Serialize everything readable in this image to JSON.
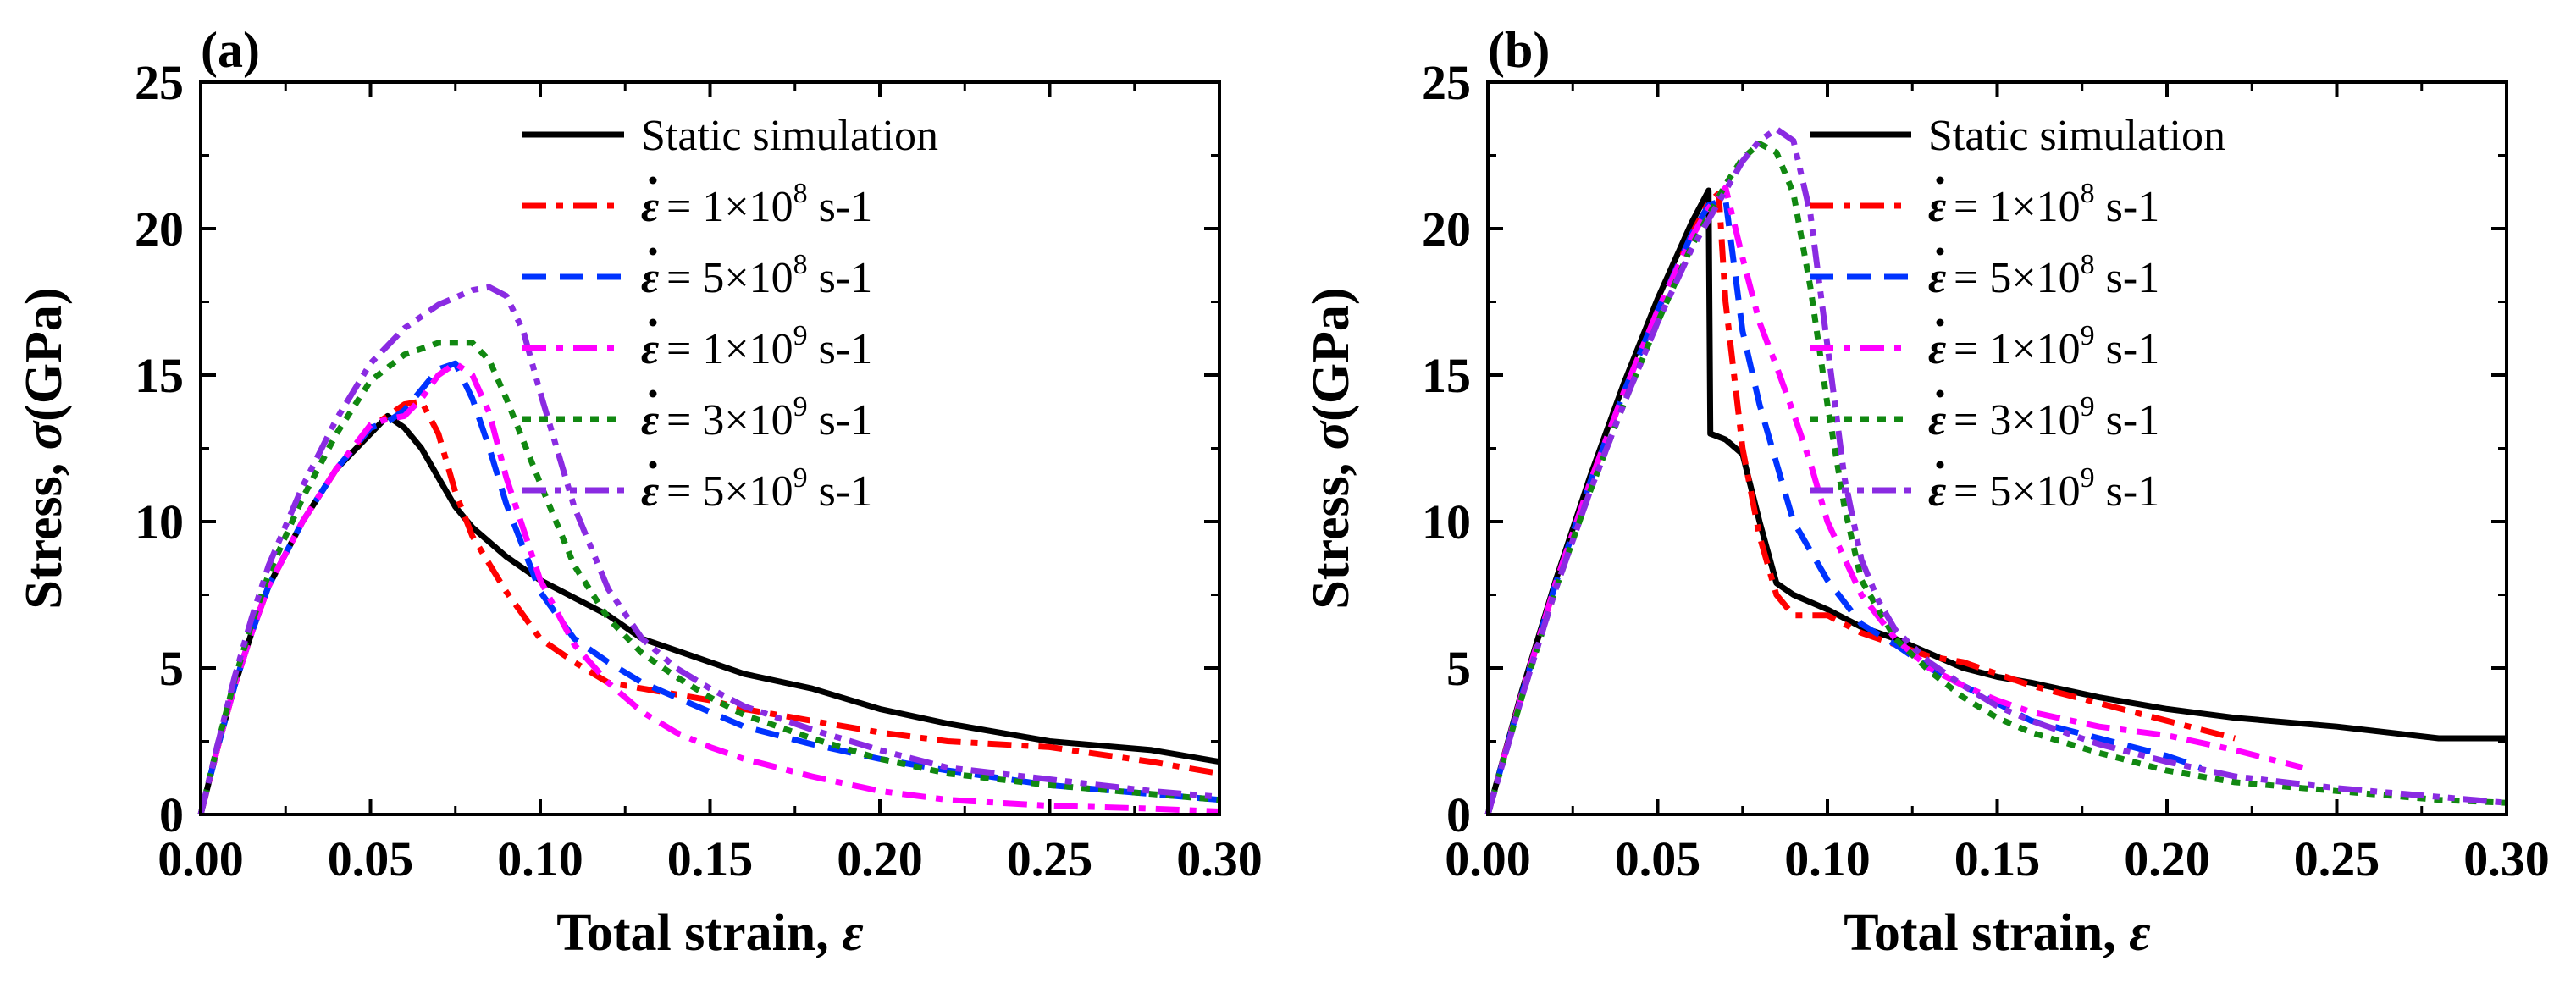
{
  "chart_data": [
    {
      "type": "line",
      "panel_label": "(a)",
      "xlabel_text": "Total strain, ",
      "xlabel_symbol": "ε",
      "ylabel_text": "Stress, ",
      "ylabel_symbol": "σ",
      "ylabel_unit": "(GPa)",
      "xlim": [
        0,
        0.3
      ],
      "ylim": [
        0,
        25
      ],
      "xticks": [
        "0.00",
        "0.05",
        "0.10",
        "0.15",
        "0.20",
        "0.25",
        "0.30"
      ],
      "yticks": [
        "0",
        "5",
        "10",
        "15",
        "20",
        "25"
      ],
      "legend_position": "top-right",
      "series": [
        {
          "name": "Static simulation",
          "legend_text": "Static simulation",
          "legend_sup": "",
          "legend_unit": "",
          "color": "#000000",
          "dash": "solid",
          "x": [
            0,
            0.005,
            0.01,
            0.015,
            0.02,
            0.03,
            0.04,
            0.05,
            0.055,
            0.06,
            0.065,
            0.07,
            0.075,
            0.08,
            0.09,
            0.1,
            0.11,
            0.12,
            0.13,
            0.14,
            0.15,
            0.16,
            0.18,
            0.2,
            0.22,
            0.25,
            0.28,
            0.3
          ],
          "y": [
            0,
            2.3,
            4.4,
            6.2,
            7.8,
            10.0,
            11.8,
            13.0,
            13.6,
            13.2,
            12.5,
            11.5,
            10.5,
            9.8,
            8.8,
            8.0,
            7.4,
            6.8,
            6.0,
            5.6,
            5.2,
            4.8,
            4.3,
            3.6,
            3.1,
            2.5,
            2.2,
            1.8
          ]
        },
        {
          "name": "rate 1e8",
          "legend_text": " = 1×10",
          "legend_sup": "8",
          "legend_unit": " s-1",
          "color": "#ff0000",
          "dash": "dashdot",
          "x": [
            0,
            0.005,
            0.01,
            0.015,
            0.02,
            0.03,
            0.04,
            0.05,
            0.055,
            0.06,
            0.065,
            0.07,
            0.075,
            0.08,
            0.09,
            0.1,
            0.11,
            0.12,
            0.13,
            0.14,
            0.15,
            0.16,
            0.18,
            0.2,
            0.22,
            0.25,
            0.28,
            0.3
          ],
          "y": [
            0,
            2.3,
            4.4,
            6.2,
            7.8,
            10.0,
            11.8,
            13.2,
            13.6,
            14.0,
            14.1,
            13.0,
            11.0,
            9.5,
            7.6,
            6.0,
            5.2,
            4.5,
            4.3,
            4.1,
            3.9,
            3.6,
            3.2,
            2.8,
            2.5,
            2.3,
            1.8,
            1.4
          ]
        },
        {
          "name": "rate 5e8",
          "legend_text": " = 5×10",
          "legend_sup": "8",
          "legend_unit": " s-1",
          "color": "#0033ff",
          "dash": "dashed",
          "x": [
            0,
            0.005,
            0.01,
            0.015,
            0.02,
            0.03,
            0.04,
            0.05,
            0.055,
            0.06,
            0.065,
            0.07,
            0.075,
            0.08,
            0.085,
            0.09,
            0.1,
            0.11,
            0.12,
            0.13,
            0.14,
            0.15,
            0.16,
            0.18,
            0.2,
            0.22,
            0.25,
            0.28,
            0.3
          ],
          "y": [
            0,
            2.3,
            4.4,
            6.2,
            7.8,
            10.0,
            11.8,
            13.2,
            13.4,
            13.8,
            14.5,
            15.2,
            15.4,
            14.2,
            12.5,
            10.6,
            7.6,
            6.0,
            5.2,
            4.5,
            4.0,
            3.5,
            3.0,
            2.4,
            1.9,
            1.5,
            1.0,
            0.7,
            0.5
          ]
        },
        {
          "name": "rate 1e9",
          "legend_text": " = 1×10",
          "legend_sup": "9",
          "legend_unit": " s-1",
          "color": "#ff00ff",
          "dash": "dashdot",
          "x": [
            0,
            0.005,
            0.01,
            0.015,
            0.02,
            0.03,
            0.04,
            0.05,
            0.055,
            0.06,
            0.065,
            0.07,
            0.075,
            0.08,
            0.085,
            0.09,
            0.1,
            0.11,
            0.12,
            0.13,
            0.14,
            0.15,
            0.16,
            0.18,
            0.2,
            0.22,
            0.25,
            0.28,
            0.3
          ],
          "y": [
            0,
            2.3,
            4.4,
            6.2,
            7.8,
            10.0,
            11.8,
            13.3,
            13.5,
            13.6,
            14.2,
            15.0,
            15.4,
            15.0,
            13.7,
            11.5,
            8.0,
            5.8,
            4.5,
            3.5,
            2.8,
            2.3,
            1.9,
            1.3,
            0.8,
            0.5,
            0.3,
            0.2,
            0.1
          ]
        },
        {
          "name": "rate 3e9",
          "legend_text": " = 3×10",
          "legend_sup": "9",
          "legend_unit": " s-1",
          "color": "#118811",
          "dash": "dotted",
          "x": [
            0,
            0.005,
            0.01,
            0.015,
            0.02,
            0.03,
            0.04,
            0.05,
            0.06,
            0.07,
            0.08,
            0.085,
            0.09,
            0.1,
            0.11,
            0.12,
            0.13,
            0.14,
            0.15,
            0.16,
            0.18,
            0.2,
            0.22,
            0.25,
            0.28,
            0.3
          ],
          "y": [
            0,
            2.4,
            4.6,
            6.5,
            8.2,
            10.8,
            13.0,
            14.8,
            15.7,
            16.1,
            16.1,
            15.5,
            14.2,
            11.3,
            8.5,
            6.7,
            5.5,
            4.7,
            4.0,
            3.4,
            2.6,
            1.9,
            1.4,
            1.0,
            0.7,
            0.5
          ]
        },
        {
          "name": "rate 5e9",
          "legend_text": " = 5×10",
          "legend_sup": "9",
          "legend_unit": " s-1",
          "color": "#8a2be2",
          "dash": "dashdotdot",
          "x": [
            0,
            0.005,
            0.01,
            0.015,
            0.02,
            0.03,
            0.04,
            0.05,
            0.06,
            0.07,
            0.08,
            0.085,
            0.09,
            0.095,
            0.1,
            0.11,
            0.12,
            0.13,
            0.14,
            0.15,
            0.16,
            0.18,
            0.2,
            0.22,
            0.25,
            0.28,
            0.3
          ],
          "y": [
            0,
            2.4,
            4.7,
            6.7,
            8.5,
            11.2,
            13.5,
            15.4,
            16.6,
            17.4,
            17.9,
            18.0,
            17.7,
            16.5,
            14.4,
            10.5,
            7.7,
            6.0,
            5.0,
            4.3,
            3.7,
            2.9,
            2.2,
            1.6,
            1.2,
            0.8,
            0.6
          ]
        }
      ]
    },
    {
      "type": "line",
      "panel_label": "(b)",
      "xlabel_text": "Total strain, ",
      "xlabel_symbol": "ε",
      "ylabel_text": "Stress, ",
      "ylabel_symbol": "σ",
      "ylabel_unit": "(GPa)",
      "xlim": [
        0,
        0.3
      ],
      "ylim": [
        0,
        25
      ],
      "xticks": [
        "0.00",
        "0.05",
        "0.10",
        "0.15",
        "0.20",
        "0.25",
        "0.30"
      ],
      "yticks": [
        "0",
        "5",
        "10",
        "15",
        "20",
        "25"
      ],
      "legend_position": "top-right",
      "series": [
        {
          "name": "Static simulation",
          "legend_text": "Static simulation",
          "legend_sup": "",
          "legend_unit": "",
          "color": "#000000",
          "dash": "solid",
          "x": [
            0,
            0.01,
            0.02,
            0.03,
            0.04,
            0.05,
            0.06,
            0.065,
            0.0655,
            0.07,
            0.075,
            0.08,
            0.085,
            0.09,
            0.1,
            0.11,
            0.12,
            0.13,
            0.14,
            0.15,
            0.16,
            0.18,
            0.2,
            0.22,
            0.25,
            0.28,
            0.3
          ],
          "y": [
            0,
            4.2,
            8.0,
            11.5,
            14.7,
            17.6,
            20.2,
            21.3,
            13.0,
            12.8,
            12.3,
            10.0,
            7.9,
            7.5,
            7.0,
            6.4,
            6.0,
            5.5,
            5.0,
            4.7,
            4.5,
            4.0,
            3.6,
            3.3,
            3.0,
            2.6,
            2.6
          ]
        },
        {
          "name": "rate 1e8",
          "legend_text": " = 1×10",
          "legend_sup": "8",
          "legend_unit": " s-1",
          "color": "#ff0000",
          "dash": "dashdot",
          "x": [
            0,
            0.01,
            0.02,
            0.03,
            0.04,
            0.05,
            0.06,
            0.065,
            0.068,
            0.07,
            0.075,
            0.08,
            0.085,
            0.09,
            0.1,
            0.11,
            0.12,
            0.13,
            0.14,
            0.15,
            0.16,
            0.18,
            0.2,
            0.22
          ],
          "y": [
            0,
            4.1,
            7.9,
            11.3,
            14.4,
            17.2,
            19.8,
            20.9,
            21.2,
            17.5,
            12.5,
            9.5,
            7.5,
            6.8,
            6.8,
            6.2,
            5.8,
            5.4,
            5.2,
            4.8,
            4.4,
            3.8,
            3.2,
            2.6
          ]
        },
        {
          "name": "rate 5e8",
          "legend_text": " = 5×10",
          "legend_sup": "8",
          "legend_unit": " s-1",
          "color": "#0033ff",
          "dash": "dashed",
          "x": [
            0,
            0.01,
            0.02,
            0.03,
            0.04,
            0.05,
            0.06,
            0.065,
            0.07,
            0.075,
            0.08,
            0.085,
            0.09,
            0.1,
            0.11,
            0.12,
            0.13,
            0.14,
            0.15,
            0.16,
            0.18,
            0.2,
            0.21
          ],
          "y": [
            0,
            4.1,
            7.9,
            11.3,
            14.4,
            17.2,
            19.8,
            20.8,
            21.0,
            16.5,
            14.0,
            12.0,
            10.0,
            8.0,
            6.5,
            5.8,
            5.0,
            4.4,
            3.8,
            3.2,
            2.6,
            2.0,
            1.6
          ]
        },
        {
          "name": "rate 1e9",
          "legend_text": " = 1×10",
          "legend_sup": "9",
          "legend_unit": " s-1",
          "color": "#ff00ff",
          "dash": "dashdot",
          "x": [
            0,
            0.01,
            0.02,
            0.03,
            0.04,
            0.05,
            0.06,
            0.065,
            0.07,
            0.075,
            0.08,
            0.085,
            0.09,
            0.095,
            0.1,
            0.11,
            0.12,
            0.13,
            0.14,
            0.15,
            0.16,
            0.18,
            0.2,
            0.22,
            0.24
          ],
          "y": [
            0,
            4.1,
            7.9,
            11.3,
            14.4,
            17.2,
            19.7,
            20.7,
            21.4,
            19.0,
            16.8,
            15.3,
            13.7,
            12.0,
            10.0,
            7.5,
            6.0,
            5.0,
            4.4,
            3.9,
            3.5,
            3.0,
            2.7,
            2.2,
            1.6
          ]
        },
        {
          "name": "rate 3e9",
          "legend_text": " = 3×10",
          "legend_sup": "9",
          "legend_unit": " s-1",
          "color": "#118811",
          "dash": "dotted",
          "x": [
            0,
            0.01,
            0.02,
            0.03,
            0.04,
            0.05,
            0.06,
            0.07,
            0.075,
            0.08,
            0.085,
            0.09,
            0.095,
            0.1,
            0.105,
            0.11,
            0.12,
            0.13,
            0.14,
            0.15,
            0.16,
            0.18,
            0.2,
            0.22,
            0.25,
            0.28,
            0.3
          ],
          "y": [
            0,
            4.0,
            7.7,
            11.0,
            14.0,
            16.8,
            19.4,
            21.5,
            22.4,
            22.9,
            22.6,
            21.2,
            18.0,
            14.0,
            10.5,
            8.0,
            6.0,
            4.9,
            4.0,
            3.3,
            2.8,
            2.1,
            1.5,
            1.1,
            0.8,
            0.5,
            0.4
          ]
        },
        {
          "name": "rate 5e9",
          "legend_text": " = 5×10",
          "legend_sup": "9",
          "legend_unit": " s-1",
          "color": "#8a2be2",
          "dash": "dashdotdot",
          "x": [
            0,
            0.01,
            0.02,
            0.03,
            0.04,
            0.05,
            0.06,
            0.07,
            0.075,
            0.08,
            0.085,
            0.09,
            0.095,
            0.1,
            0.105,
            0.11,
            0.115,
            0.12,
            0.13,
            0.14,
            0.15,
            0.16,
            0.18,
            0.2,
            0.22,
            0.25,
            0.28,
            0.3
          ],
          "y": [
            0,
            4.0,
            7.7,
            11.0,
            14.0,
            16.8,
            19.3,
            21.3,
            22.3,
            23.0,
            23.4,
            23.0,
            20.5,
            16.0,
            11.5,
            8.7,
            7.3,
            6.3,
            5.2,
            4.4,
            3.7,
            3.2,
            2.4,
            1.8,
            1.3,
            0.9,
            0.6,
            0.4
          ]
        }
      ]
    }
  ]
}
